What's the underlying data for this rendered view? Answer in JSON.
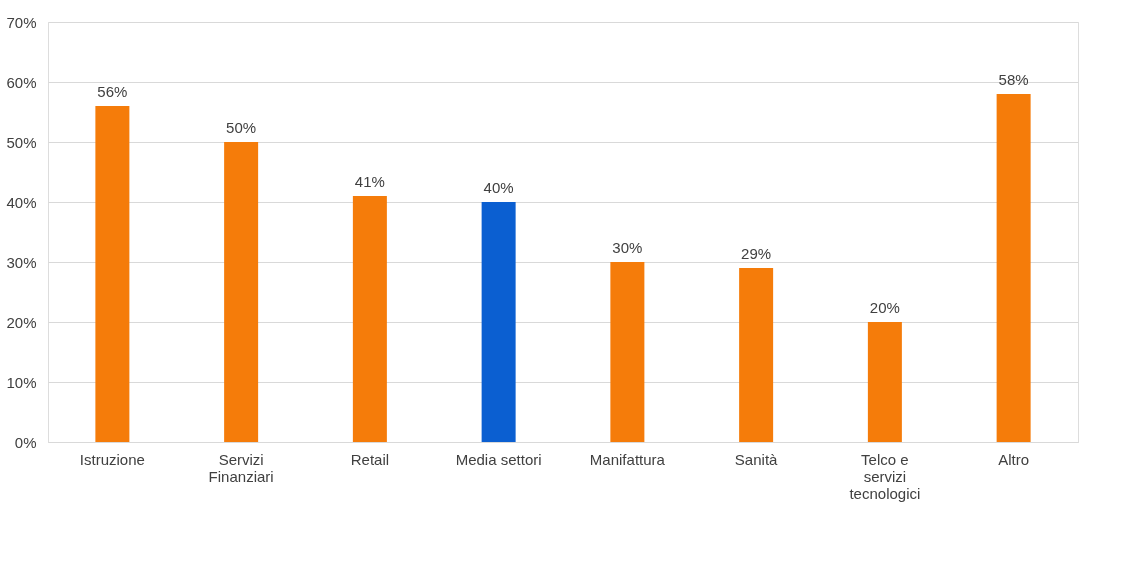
{
  "chart_data": {
    "type": "bar",
    "categories": [
      "Istruzione",
      "Servizi Finanziari",
      "Retail",
      "Media settori",
      "Manifattura",
      "Sanità",
      "Telco e servizi tecnologici",
      "Altro"
    ],
    "values": [
      56,
      50,
      41,
      40,
      30,
      29,
      20,
      58
    ],
    "colors": [
      "#f57c0a",
      "#f57c0a",
      "#f57c0a",
      "#0b5fd1",
      "#f57c0a",
      "#f57c0a",
      "#f57c0a",
      "#f57c0a"
    ],
    "value_labels": [
      "56%",
      "50%",
      "41%",
      "40%",
      "30%",
      "29%",
      "20%",
      "58%"
    ],
    "ylim": [
      0,
      70
    ],
    "yticks": [
      {
        "value": 0,
        "label": "0%"
      },
      {
        "value": 10,
        "label": "10%"
      },
      {
        "value": 20,
        "label": "20%"
      },
      {
        "value": 30,
        "label": "30%"
      },
      {
        "value": 40,
        "label": "40%"
      },
      {
        "value": 50,
        "label": "50%"
      },
      {
        "value": 60,
        "label": "60%"
      },
      {
        "value": 70,
        "label": "70%"
      }
    ],
    "grid": "y"
  }
}
